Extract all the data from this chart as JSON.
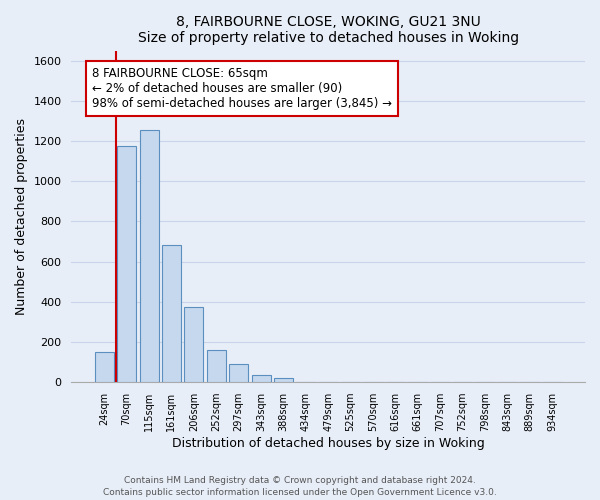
{
  "title": "8, FAIRBOURNE CLOSE, WOKING, GU21 3NU",
  "subtitle": "Size of property relative to detached houses in Woking",
  "xlabel": "Distribution of detached houses by size in Woking",
  "ylabel": "Number of detached properties",
  "bar_labels": [
    "24sqm",
    "70sqm",
    "115sqm",
    "161sqm",
    "206sqm",
    "252sqm",
    "297sqm",
    "343sqm",
    "388sqm",
    "434sqm",
    "479sqm",
    "525sqm",
    "570sqm",
    "616sqm",
    "661sqm",
    "707sqm",
    "752sqm",
    "798sqm",
    "843sqm",
    "889sqm",
    "934sqm"
  ],
  "bar_values": [
    152,
    1175,
    1255,
    685,
    375,
    160,
    90,
    35,
    20,
    0,
    0,
    0,
    0,
    0,
    0,
    0,
    0,
    0,
    0,
    0,
    0
  ],
  "bar_color": "#c5d8ed",
  "bar_edge_color": "#5a8fc0",
  "highlight_color": "#cc0000",
  "annotation_title": "8 FAIRBOURNE CLOSE: 65sqm",
  "annotation_line1": "← 2% of detached houses are smaller (90)",
  "annotation_line2": "98% of semi-detached houses are larger (3,845) →",
  "annotation_box_facecolor": "#ffffff",
  "annotation_box_edgecolor": "#cc0000",
  "ylim": [
    0,
    1650
  ],
  "yticks": [
    0,
    200,
    400,
    600,
    800,
    1000,
    1200,
    1400,
    1600
  ],
  "footer_line1": "Contains HM Land Registry data © Crown copyright and database right 2024.",
  "footer_line2": "Contains public sector information licensed under the Open Government Licence v3.0.",
  "grid_color": "#c8d4e8",
  "background_color": "#e8eef8"
}
